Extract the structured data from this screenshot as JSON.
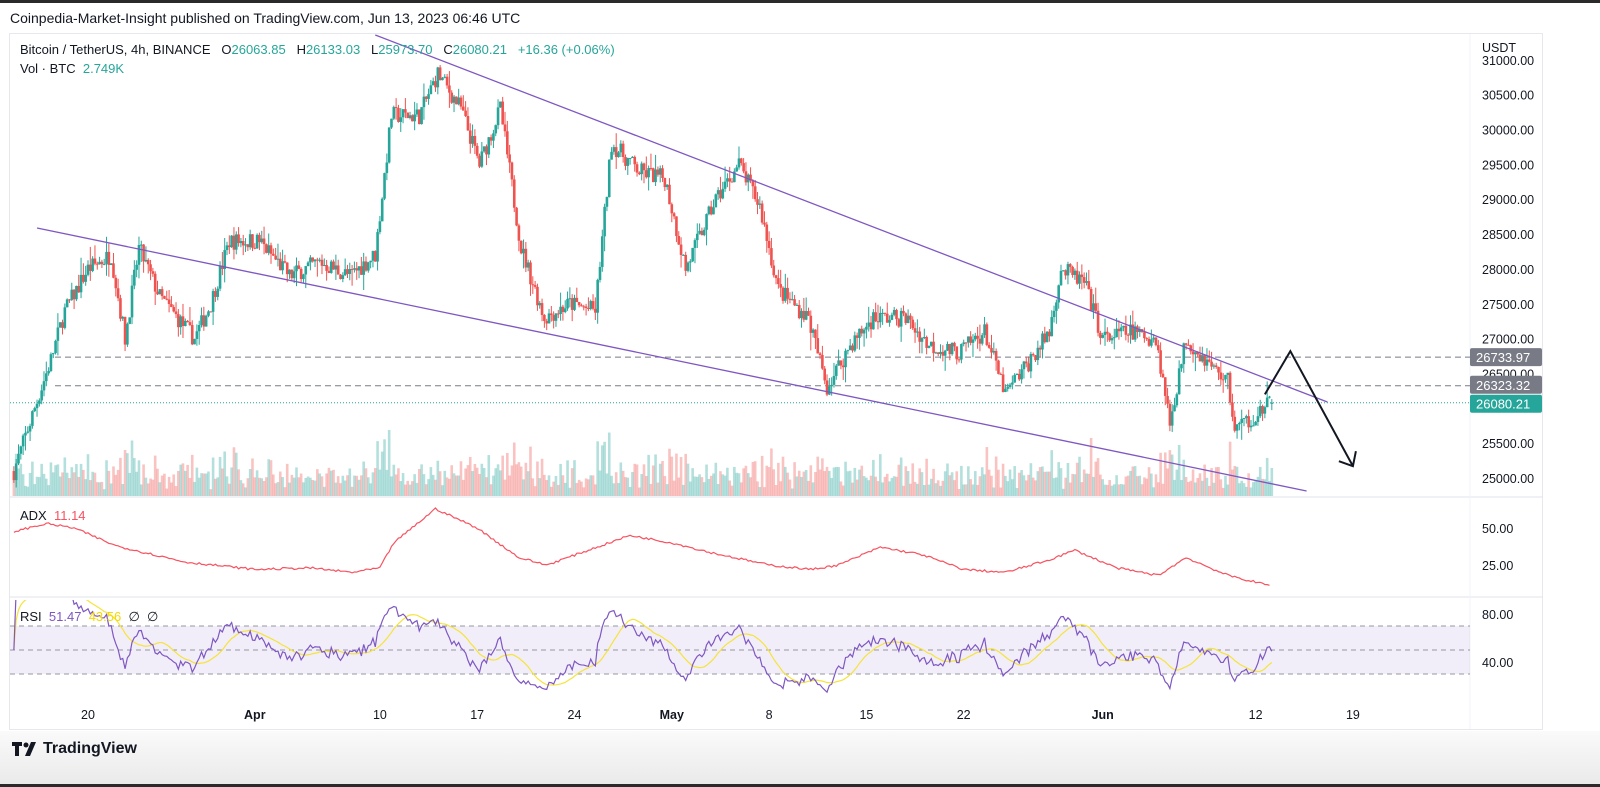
{
  "header": {
    "published": "Coinpedia-Market-Insight published on TradingView.com, Jun 13, 2023 06:46 UTC"
  },
  "legend": {
    "symbol": "Bitcoin / TetherUS, 4h, BINANCE",
    "o_label": "O",
    "o": "26063.85",
    "h_label": "H",
    "h": "26133.03",
    "l_label": "L",
    "l": "25973.70",
    "c_label": "C",
    "c": "26080.21",
    "change": "+16.36 (+0.06%)",
    "vol_label": "Vol · BTC",
    "vol": "2.749K"
  },
  "adx_legend": {
    "label": "ADX",
    "value": "11.14"
  },
  "rsi_legend": {
    "label": "RSI",
    "value": "51.47",
    "ma": "43.56",
    "na1": "∅",
    "na2": "∅"
  },
  "footer": {
    "brand": "TradingView"
  },
  "colors": {
    "up": "#26a69a",
    "down": "#ef5350",
    "trendline": "#7e57c2",
    "adx": "#f7525f",
    "rsi": "#7e57c2",
    "rsi_ma": "#f5e33b",
    "level": "#787b86"
  },
  "chart_data": [
    {
      "type": "candlestick",
      "title": "Bitcoin / TetherUS, 4h, BINANCE",
      "ylabel": "USDT",
      "ylim": [
        24800,
        31300
      ],
      "y_ticks": [
        "25000.00",
        "25500.00",
        "26000.00",
        "26500.00",
        "27000.00",
        "27500.00",
        "28000.00",
        "28500.00",
        "29000.00",
        "29500.00",
        "30000.00",
        "30500.00",
        "31000.00"
      ],
      "x_ticks": [
        {
          "date": "2023-03-20",
          "label": "20"
        },
        {
          "date": "2023-04-01",
          "label": "Apr"
        },
        {
          "date": "2023-04-10",
          "label": "10"
        },
        {
          "date": "2023-04-17",
          "label": "17"
        },
        {
          "date": "2023-04-24",
          "label": "24"
        },
        {
          "date": "2023-05-01",
          "label": "May"
        },
        {
          "date": "2023-05-08",
          "label": "8"
        },
        {
          "date": "2023-05-15",
          "label": "15"
        },
        {
          "date": "2023-05-22",
          "label": "22"
        },
        {
          "date": "2023-06-01",
          "label": "Jun"
        },
        {
          "date": "2023-06-12",
          "label": "12"
        },
        {
          "date": "2023-06-19",
          "label": "19"
        }
      ],
      "approx_close_path": [
        [
          "2023-03-14T16:00",
          25100
        ],
        [
          "2023-03-17T08:00",
          26700
        ],
        [
          "2023-03-18T08:00",
          27400
        ],
        [
          "2023-03-20T00:00",
          28000
        ],
        [
          "2023-03-21T16:00",
          28200
        ],
        [
          "2023-03-22T16:00",
          27000
        ],
        [
          "2023-03-23T16:00",
          28300
        ],
        [
          "2023-03-25T04:00",
          27600
        ],
        [
          "2023-03-27T16:00",
          27000
        ],
        [
          "2023-03-28T20:00",
          27500
        ],
        [
          "2023-03-30T04:00",
          28400
        ],
        [
          "2023-04-01T08:00",
          28400
        ],
        [
          "2023-04-03T12:00",
          27900
        ],
        [
          "2023-04-05T16:00",
          28100
        ],
        [
          "2023-04-07T20:00",
          27900
        ],
        [
          "2023-04-09T16:00",
          28200
        ],
        [
          "2023-04-10T20:00",
          30200
        ],
        [
          "2023-04-12T20:00",
          30200
        ],
        [
          "2023-04-14T04:00",
          30800
        ],
        [
          "2023-04-15T20:00",
          30300
        ],
        [
          "2023-04-17T04:00",
          29500
        ],
        [
          "2023-04-18T16:00",
          30300
        ],
        [
          "2023-04-20T04:00",
          28300
        ],
        [
          "2023-04-21T20:00",
          27300
        ],
        [
          "2023-04-23T16:00",
          27500
        ],
        [
          "2023-04-25T12:00",
          27400
        ],
        [
          "2023-04-26T16:00",
          29800
        ],
        [
          "2023-04-28T16:00",
          29400
        ],
        [
          "2023-04-30T12:00",
          29300
        ],
        [
          "2023-05-02T00:00",
          28000
        ],
        [
          "2023-05-04T04:00",
          29000
        ],
        [
          "2023-05-05T20:00",
          29500
        ],
        [
          "2023-05-07T08:00",
          28900
        ],
        [
          "2023-05-08T16:00",
          27700
        ],
        [
          "2023-05-10T20:00",
          27300
        ],
        [
          "2023-05-12T04:00",
          26300
        ],
        [
          "2023-05-13T20:00",
          26900
        ],
        [
          "2023-05-15T12:00",
          27300
        ],
        [
          "2023-05-17T20:00",
          27300
        ],
        [
          "2023-05-19T12:00",
          26900
        ],
        [
          "2023-05-21T16:00",
          26800
        ],
        [
          "2023-05-23T12:00",
          27100
        ],
        [
          "2023-05-25T00:00",
          26200
        ],
        [
          "2023-05-26T20:00",
          26700
        ],
        [
          "2023-05-28T04:00",
          27100
        ],
        [
          "2023-05-29T00:00",
          28000
        ],
        [
          "2023-05-30T16:00",
          27800
        ],
        [
          "2023-06-01T00:00",
          27000
        ],
        [
          "2023-06-03T00:00",
          27100
        ],
        [
          "2023-06-04T20:00",
          27000
        ],
        [
          "2023-06-05T20:00",
          25800
        ],
        [
          "2023-06-07T00:00",
          27000
        ],
        [
          "2023-06-08T20:00",
          26600
        ],
        [
          "2023-06-10T00:00",
          26400
        ],
        [
          "2023-06-10T12:00",
          25700
        ],
        [
          "2023-06-12T00:00",
          25900
        ],
        [
          "2023-06-13T04:00",
          26080.21
        ]
      ],
      "horizontal_levels": [
        {
          "value": 26733.97,
          "label": "26733.97",
          "style": "dashed"
        },
        {
          "value": 26323.32,
          "label": "26323.32",
          "style": "dashed"
        },
        {
          "value": 26080.21,
          "label": "26080.21",
          "style": "dotted",
          "kind": "last-price"
        }
      ],
      "trendlines": [
        {
          "name": "upper",
          "from": [
            "2023-04-09T16:00",
            31356
          ],
          "to": [
            "2023-06-17T04:00",
            26090
          ]
        },
        {
          "name": "lower",
          "from": [
            "2023-03-16T08:00",
            28587
          ],
          "to": [
            "2023-06-15T16:00",
            24813
          ]
        }
      ],
      "projection_arrow": [
        [
          "2023-06-12T16:00",
          26200
        ],
        [
          "2023-06-14T12:00",
          26820
        ],
        [
          "2023-06-19T00:00",
          25170
        ]
      ]
    },
    {
      "type": "line",
      "title": "ADX",
      "y_ticks": [
        "50.00",
        "25.00"
      ],
      "last_value": 11.14,
      "approx_path": [
        [
          "2023-03-14",
          46
        ],
        [
          "2023-03-17",
          53
        ],
        [
          "2023-03-19",
          50
        ],
        [
          "2023-03-22",
          38
        ],
        [
          "2023-03-27",
          27
        ],
        [
          "2023-04-01",
          22
        ],
        [
          "2023-04-05",
          23
        ],
        [
          "2023-04-08",
          20
        ],
        [
          "2023-04-10",
          23
        ],
        [
          "2023-04-11",
          40
        ],
        [
          "2023-04-14",
          63
        ],
        [
          "2023-04-17",
          50
        ],
        [
          "2023-04-20",
          30
        ],
        [
          "2023-04-22",
          25
        ],
        [
          "2023-04-25",
          35
        ],
        [
          "2023-04-28",
          45
        ],
        [
          "2023-05-01",
          40
        ],
        [
          "2023-05-04",
          33
        ],
        [
          "2023-05-08",
          25
        ],
        [
          "2023-05-11",
          22
        ],
        [
          "2023-05-13",
          25
        ],
        [
          "2023-05-16",
          37
        ],
        [
          "2023-05-19",
          32
        ],
        [
          "2023-05-22",
          22
        ],
        [
          "2023-05-25",
          20
        ],
        [
          "2023-05-28",
          28
        ],
        [
          "2023-05-30",
          35
        ],
        [
          "2023-06-02",
          23
        ],
        [
          "2023-06-05",
          18
        ],
        [
          "2023-06-07",
          30
        ],
        [
          "2023-06-10",
          18
        ],
        [
          "2023-06-13",
          11.14
        ]
      ]
    },
    {
      "type": "line",
      "title": "RSI",
      "y_ticks": [
        "80.00",
        "40.00"
      ],
      "bands": [
        70,
        50,
        30
      ],
      "series": [
        {
          "name": "RSI",
          "last": 51.47
        },
        {
          "name": "MA",
          "last": 43.56
        }
      ]
    }
  ]
}
